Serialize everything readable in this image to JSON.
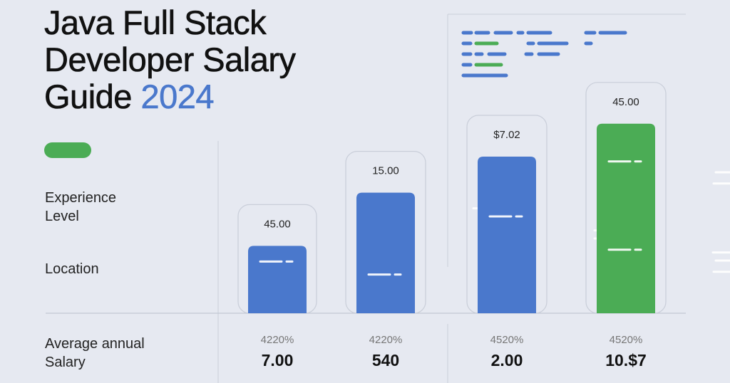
{
  "title": {
    "line1": "Java Full Stack",
    "line2": "Developer Salary",
    "line3_prefix": "Guide ",
    "year": "2024"
  },
  "labels": {
    "experience_line1": "Experience",
    "experience_line2": "Level",
    "location": "Location",
    "salary_line1": "Average annual",
    "salary_line2": "Salary"
  },
  "colors": {
    "blue": "#4a78cc",
    "green": "#4bac55",
    "background": "#e6e9f1",
    "panel_border": "#c9ced9"
  },
  "chart_data": {
    "type": "bar",
    "title": "",
    "xlabel": "",
    "ylabel": "",
    "grid": false,
    "ylim": [
      0,
      100
    ],
    "bars": [
      {
        "value_label": "45.00",
        "percent": "4220%",
        "salary": "7.00",
        "level": 18,
        "color": "blue"
      },
      {
        "value_label": "15.00",
        "percent": "4220%",
        "salary": "540",
        "level": 52,
        "color": "blue"
      },
      {
        "value_label": "$7.02",
        "percent": "4520%",
        "salary": "2.00",
        "level": 75,
        "color": "blue"
      },
      {
        "value_label": "45.00",
        "percent": "4520%",
        "salary": "10.$7",
        "level": 96,
        "color": "green"
      }
    ]
  }
}
